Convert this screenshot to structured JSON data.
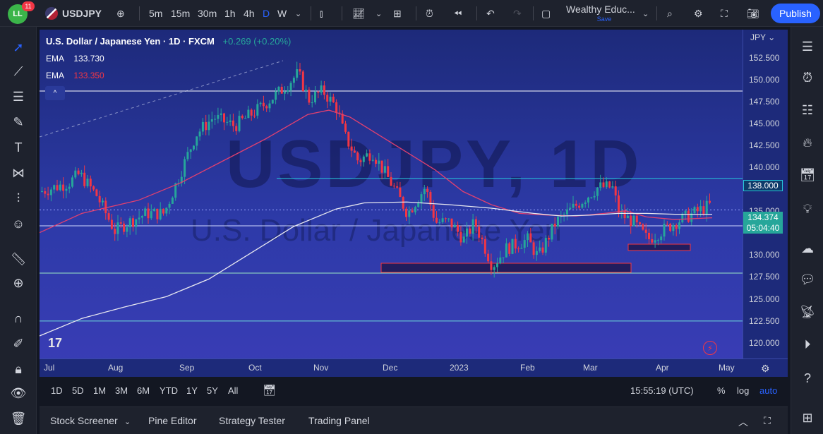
{
  "topbar": {
    "logo_text": "LL",
    "notifications": "11",
    "symbol": "USDJPY",
    "intervals": [
      "5m",
      "15m",
      "30m",
      "1h",
      "4h",
      "D",
      "W"
    ],
    "active_interval": "D",
    "layout_name": "Wealthy Educ...",
    "layout_save": "Save",
    "publish_label": "Publish"
  },
  "legend": {
    "title": "U.S. Dollar / Japanese Yen · 1D · FXCM",
    "change": "+0.269 (+0.20%)",
    "ema1_label": "EMA",
    "ema1_value": "133.730",
    "ema2_label": "EMA",
    "ema2_value": "133.350",
    "collapse": "^"
  },
  "watermark": {
    "symbol": "USDJPY, 1D",
    "name": "U.S. Dollar / Japanese Yen"
  },
  "price_axis": {
    "currency": "JPY",
    "labels": [
      "152.500",
      "150.000",
      "147.500",
      "145.000",
      "142.500",
      "140.000",
      "135.000",
      "130.000",
      "127.500",
      "125.000",
      "122.500",
      "120.000"
    ],
    "resistance_tag": "138.000",
    "last_price": "134.374",
    "countdown": "05:04:40"
  },
  "time_axis": {
    "labels": [
      "Jul",
      "Aug",
      "Sep",
      "Oct",
      "Nov",
      "Dec",
      "2023",
      "Feb",
      "Mar",
      "Apr",
      "May"
    ]
  },
  "range_bar": {
    "ranges": [
      "1D",
      "5D",
      "1M",
      "3M",
      "6M",
      "YTD",
      "1Y",
      "5Y",
      "All"
    ],
    "clock": "15:55:19 (UTC)",
    "percent": "%",
    "log": "log",
    "auto": "auto"
  },
  "panels": {
    "tabs": [
      "Stock Screener",
      "Pine Editor",
      "Strategy Tester",
      "Trading Panel"
    ]
  },
  "colors": {
    "up": "#26a69a",
    "down": "#f23645",
    "ema_fast": "#e04070",
    "ema_slow": "#e8e8f0",
    "accent": "#2962ff"
  }
}
